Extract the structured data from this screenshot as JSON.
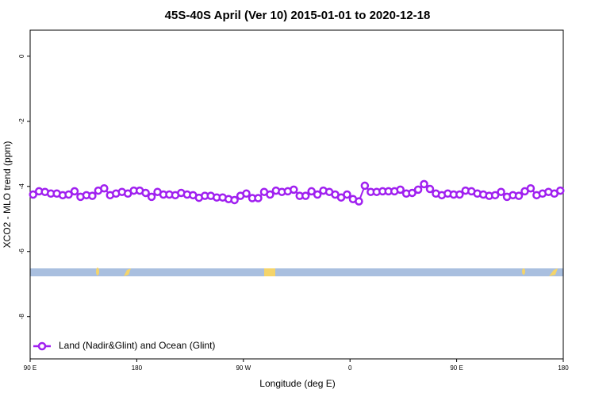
{
  "chart_data": {
    "type": "line",
    "title": "45S-40S April (Ver 10)   2015-01-01 to 2020-12-18",
    "xlabel": "Longitude (deg E)",
    "ylabel": "XCO2 - MLO trend (ppm)",
    "xlim": [
      90,
      540
    ],
    "xticks": [
      {
        "value": 90,
        "label": "90 E"
      },
      180,
      {
        "value": 270,
        "label": "90 W"
      },
      {
        "value": 360,
        "label": "0"
      },
      {
        "value": 450,
        "label": "90 E"
      },
      {
        "value": 540,
        "label": "180"
      }
    ],
    "ylim": [
      -9.3,
      0.8
    ],
    "yticks": [
      0,
      -2,
      -4,
      -6,
      -8
    ],
    "legend": "bottom-left",
    "x": [
      92.5,
      97.5,
      102.5,
      107.5,
      112.5,
      117.5,
      122.5,
      127.5,
      132.5,
      137.5,
      142.5,
      147.5,
      152.5,
      157.5,
      162.5,
      167.5,
      172.5,
      177.5,
      182.5,
      187.5,
      192.5,
      197.5,
      202.5,
      207.5,
      212.5,
      217.5,
      222.5,
      227.5,
      232.5,
      237.5,
      242.5,
      247.5,
      252.5,
      257.5,
      262.5,
      267.5,
      272.5,
      277.5,
      282.5,
      287.5,
      292.5,
      297.5,
      302.5,
      307.5,
      312.5,
      317.5,
      322.5,
      327.5,
      332.5,
      337.5,
      342.5,
      347.5,
      352.5,
      357.5,
      362.5,
      367.5,
      372.5,
      377.5,
      382.5,
      387.5,
      392.5,
      397.5,
      402.5,
      407.5,
      412.5,
      417.5,
      422.5,
      427.5,
      432.5,
      437.5,
      442.5,
      447.5,
      452.5,
      457.5,
      462.5,
      467.5,
      472.5,
      477.5,
      482.5,
      487.5,
      492.5,
      497.5,
      502.5,
      507.5,
      512.5,
      517.5,
      522.5,
      527.5,
      532.5,
      537.5
    ],
    "series": [
      {
        "name": "Land (Nadir&Glint) and Ocean (Glint)",
        "color": "#a020f0",
        "values": [
          -4.25,
          -4.15,
          -4.17,
          -4.22,
          -4.22,
          -4.27,
          -4.25,
          -4.15,
          -4.32,
          -4.27,
          -4.29,
          -4.13,
          -4.06,
          -4.27,
          -4.22,
          -4.17,
          -4.22,
          -4.13,
          -4.13,
          -4.2,
          -4.32,
          -4.17,
          -4.25,
          -4.25,
          -4.27,
          -4.2,
          -4.25,
          -4.27,
          -4.35,
          -4.29,
          -4.29,
          -4.34,
          -4.34,
          -4.39,
          -4.42,
          -4.29,
          -4.22,
          -4.36,
          -4.36,
          -4.17,
          -4.25,
          -4.13,
          -4.17,
          -4.15,
          -4.1,
          -4.29,
          -4.29,
          -4.15,
          -4.25,
          -4.13,
          -4.17,
          -4.25,
          -4.34,
          -4.25,
          -4.39,
          -4.46,
          -3.98,
          -4.17,
          -4.17,
          -4.15,
          -4.15,
          -4.15,
          -4.1,
          -4.22,
          -4.2,
          -4.1,
          -3.93,
          -4.08,
          -4.22,
          -4.27,
          -4.22,
          -4.25,
          -4.25,
          -4.13,
          -4.15,
          -4.22,
          -4.25,
          -4.29,
          -4.27,
          -4.17,
          -4.32,
          -4.27,
          -4.29,
          -4.15,
          -4.06,
          -4.27,
          -4.22,
          -4.17,
          -4.22,
          -4.13
        ]
      }
    ]
  }
}
